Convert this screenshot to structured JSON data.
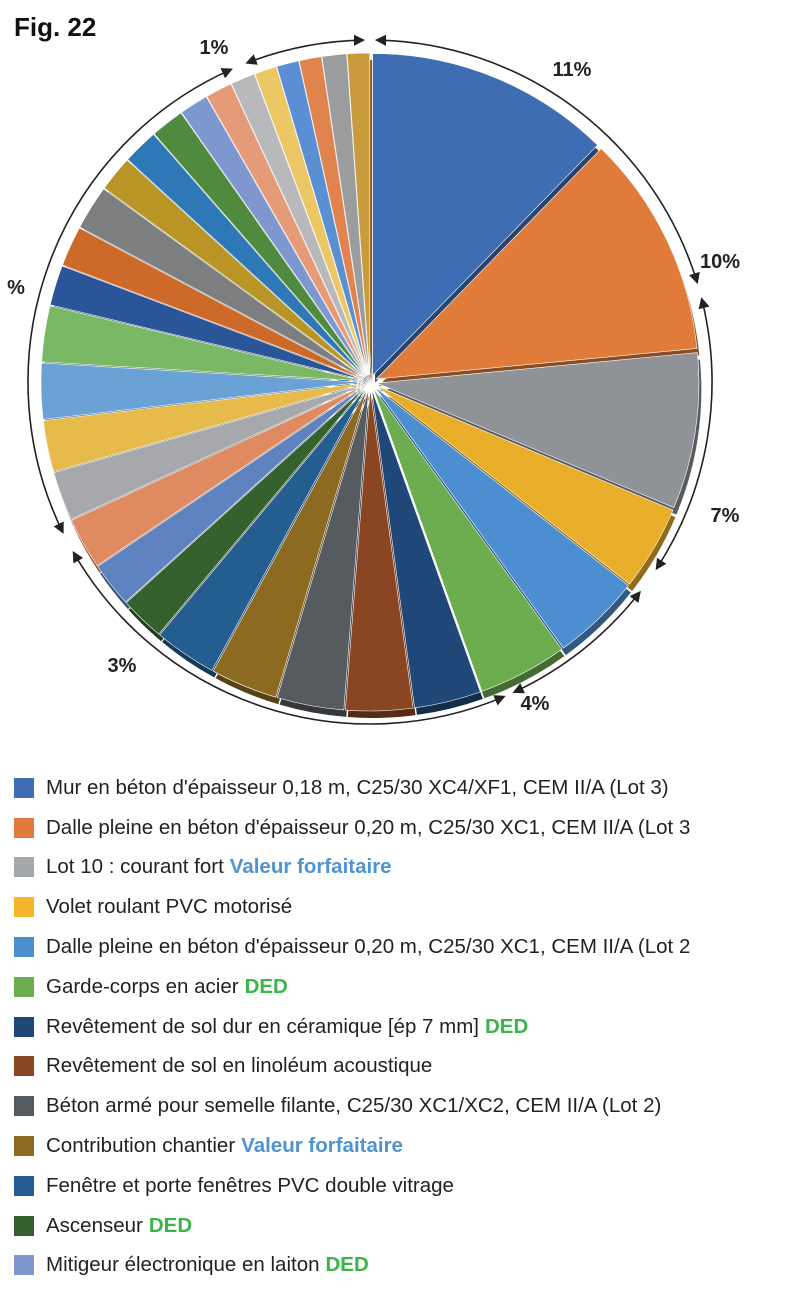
{
  "figure_label": "Fig. 22",
  "chart_data": {
    "type": "pie",
    "slice_values": [
      11,
      10,
      7,
      3.8,
      4,
      4,
      3,
      3,
      3,
      3,
      2.8,
      2,
      2,
      2.3,
      2.2,
      2.3,
      2.5,
      2.5,
      1.8,
      1.8,
      2,
      1.6,
      1.6,
      1.5,
      1.3,
      1.2,
      1.1,
      1,
      1,
      1,
      1.1,
      1
    ],
    "slice_colors": [
      "#3f6db3",
      "#e07b39",
      "#8f9397",
      "#e8ae2a",
      "#4c8fd0",
      "#6cad50",
      "#1f4878",
      "#8a4522",
      "#565b60",
      "#8c6a22",
      "#245d8f",
      "#34612e",
      "#5f82c1",
      "#df8a60",
      "#a6a8ab",
      "#e6bb4c",
      "#6aa2d6",
      "#79b966",
      "#2a5598",
      "#cd6a2a",
      "#7c7e80",
      "#b89524",
      "#2e78b8",
      "#4f8a3f",
      "#7e98cf",
      "#e59b78",
      "#b7b9bb",
      "#ecc765",
      "#5b8fd3",
      "#e0834e",
      "#9a9c9e",
      "#c99b3d"
    ],
    "percent_labels": [
      {
        "text": "11%"
      },
      {
        "text": "10%"
      },
      {
        "text": "7%"
      },
      {
        "text": "4%"
      },
      {
        "text": "3%"
      },
      {
        "text": "%"
      },
      {
        "text": "1%"
      }
    ],
    "legend": [
      {
        "label": "Mur en béton d'épaisseur 0,18 m, C25/30 XC4/XF1, CEM II/A (Lot 3)",
        "tag": "",
        "tag_type": "",
        "color": "#3f6db3"
      },
      {
        "label": "Dalle pleine en béton d'épaisseur 0,20 m, C25/30 XC1, CEM II/A (Lot 3",
        "tag": "",
        "tag_type": "",
        "color": "#e07b39"
      },
      {
        "label": "Lot 10 : courant fort",
        "tag": "Valeur forfaitaire",
        "tag_type": "vf",
        "color": "#a5a8ab"
      },
      {
        "label": "Volet roulant PVC motorisé",
        "tag": "",
        "tag_type": "",
        "color": "#f5b52a"
      },
      {
        "label": "Dalle pleine en béton d'épaisseur 0,20 m, C25/30 XC1, CEM II/A (Lot 2",
        "tag": "",
        "tag_type": "",
        "color": "#4c8fd0"
      },
      {
        "label": "Garde-corps en acier",
        "tag": "DED",
        "tag_type": "ded",
        "color": "#6cad50"
      },
      {
        "label": "Revêtement de sol dur en céramique [ép 7 mm]",
        "tag": "DED",
        "tag_type": "ded",
        "color": "#1f4878"
      },
      {
        "label": "Revêtement de sol en linoléum acoustique",
        "tag": "",
        "tag_type": "",
        "color": "#8a4522"
      },
      {
        "label": "Béton armé pour semelle filante, C25/30 XC1/XC2, CEM II/A (Lot 2)",
        "tag": "",
        "tag_type": "",
        "color": "#565b60"
      },
      {
        "label": "Contribution chantier",
        "tag": "Valeur forfaitaire",
        "tag_type": "vf",
        "color": "#8c6a22"
      },
      {
        "label": "Fenêtre et porte fenêtres PVC double vitrage",
        "tag": "",
        "tag_type": "",
        "color": "#245d8f"
      },
      {
        "label": "Ascenseur",
        "tag": "DED",
        "tag_type": "ded",
        "color": "#34612e"
      },
      {
        "label": "Mitigeur électronique en laiton",
        "tag": "DED",
        "tag_type": "ded",
        "color": "#7e98cf"
      }
    ]
  }
}
